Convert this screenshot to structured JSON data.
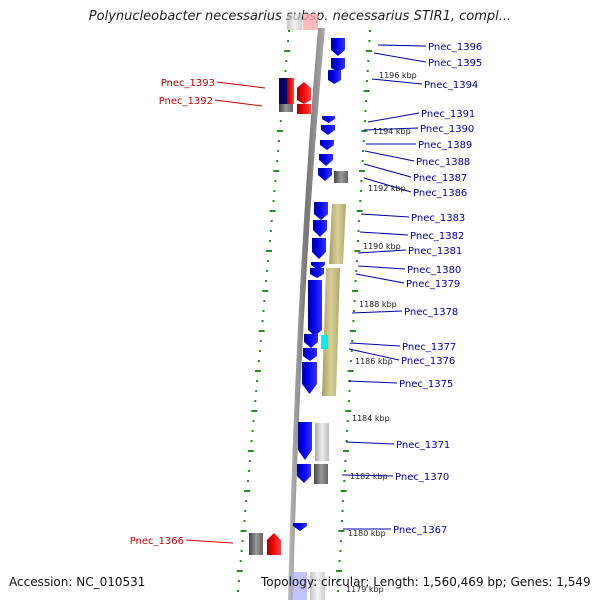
{
  "title": "Polynucleobacter necessarius subsp. necessarius STIR1, compl...",
  "footer": {
    "accession": "Accession: NC_010531",
    "topology": "Topology: circular; Length: 1,560,469 bp; Genes: 1,549"
  },
  "colors": {
    "forward_gene": "#0000ee",
    "reverse_gene": "#ee0000",
    "other_feature": "#777777",
    "highlight": "#00eeee",
    "region": "#c8bf7a",
    "label_forward": "#0000aa",
    "label_reverse": "#cc0000",
    "ruler_dash": "#2a8a2a"
  },
  "kbp_marks": [
    "1196 kbp",
    "1194 kbp",
    "1192 kbp",
    "1190 kbp",
    "1188 kbp",
    "1186 kbp",
    "1184 kbp",
    "1182 kbp",
    "1180 kbp",
    "1179 kbp"
  ],
  "right_labels": [
    "Pnec_1396",
    "Pnec_1395",
    "Pnec_1394",
    "Pnec_1391",
    "Pnec_1390",
    "Pnec_1389",
    "Pnec_1388",
    "Pnec_1387",
    "Pnec_1386",
    "Pnec_1383",
    "Pnec_1382",
    "Pnec_1381",
    "Pnec_1380",
    "Pnec_1379",
    "Pnec_1378",
    "Pnec_1377",
    "Pnec_1376",
    "Pnec_1375",
    "Pnec_1371",
    "Pnec_1370",
    "Pnec_1367"
  ],
  "left_labels": [
    "Pnec_1393",
    "Pnec_1392",
    "Pnec_1366"
  ]
}
